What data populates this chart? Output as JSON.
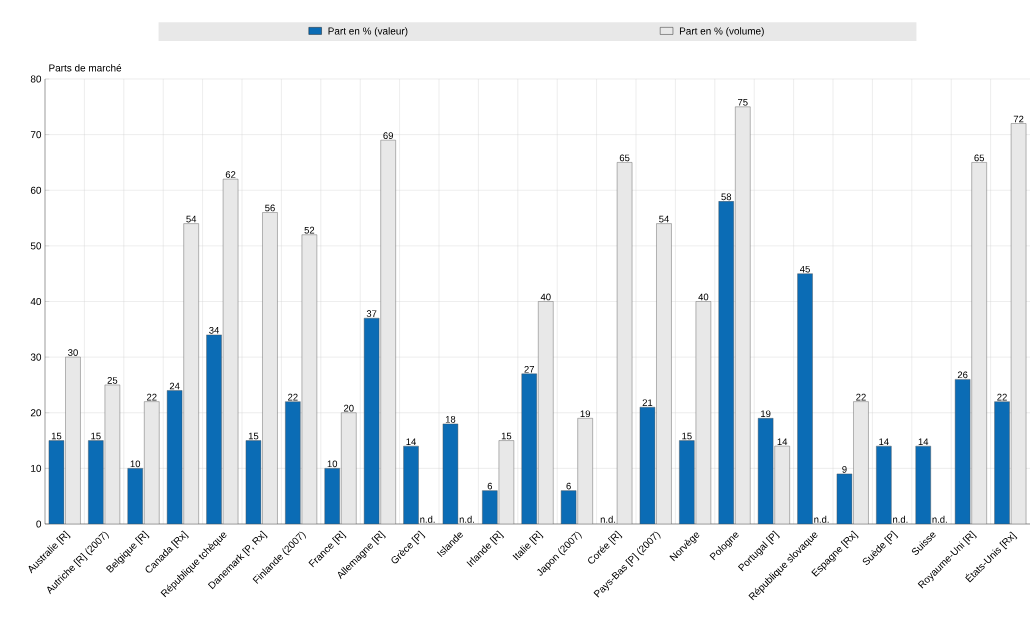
{
  "chart_data": {
    "type": "bar",
    "ylabel": "Parts de marché",
    "categories": [
      "Australie [R]",
      "Autriche [R] (2007)",
      "Belgique [R]",
      "Canada [Rx]",
      "République tchèque",
      "Danemark [P, Rx]",
      "Finlande (2007)",
      "France [R]",
      "Allemagne [R]",
      "Grèce [P]",
      "Islande",
      "Irlande [R]",
      "Italie [R]",
      "Japon (2007)",
      "Corée [R]",
      "Pays-Bas [P] (2007)",
      "Norvège",
      "Pologne",
      "Portugal [P]",
      "République slovaque",
      "Espagne [Rx]",
      "Suède [P]",
      "Suisse",
      "Royaume-Uni [R]",
      "États-Unis [Rx]"
    ],
    "series": [
      {
        "name": "Part en % (valeur)",
        "color": "#0b6cb5",
        "values": [
          15,
          15,
          10,
          24,
          34,
          15,
          22,
          10,
          37,
          14,
          18,
          6,
          27,
          6,
          null,
          21,
          15,
          58,
          19,
          45,
          9,
          14,
          14,
          26,
          22
        ],
        "value_labels": [
          "15",
          "15",
          "10",
          "24",
          "34",
          "15",
          "22",
          "10",
          "37",
          "14",
          "18",
          "6",
          "27",
          "6",
          "n.d.",
          "21",
          "15",
          "58",
          "19",
          "45",
          "9",
          "14",
          "14",
          "26",
          "22"
        ]
      },
      {
        "name": "Part en % (volume)",
        "color": "#e8e8e8",
        "values": [
          30,
          25,
          22,
          54,
          62,
          56,
          52,
          20,
          69,
          null,
          null,
          15,
          40,
          19,
          65,
          54,
          40,
          75,
          14,
          null,
          22,
          null,
          null,
          65,
          72
        ],
        "value_labels": [
          "30",
          "25",
          "22",
          "54",
          "62",
          "56",
          "52",
          "20",
          "69",
          "n.d.",
          "n.d.",
          "15",
          "40",
          "19",
          "65",
          "54",
          "40",
          "75",
          "14",
          "n.d.",
          "22",
          "n.d.",
          "n.d.",
          "65",
          "72"
        ]
      }
    ],
    "ylim": [
      0,
      80
    ],
    "yticks": [
      0,
      10,
      20,
      30,
      40,
      50,
      60,
      70,
      80
    ],
    "grid": true,
    "legend": "top"
  }
}
